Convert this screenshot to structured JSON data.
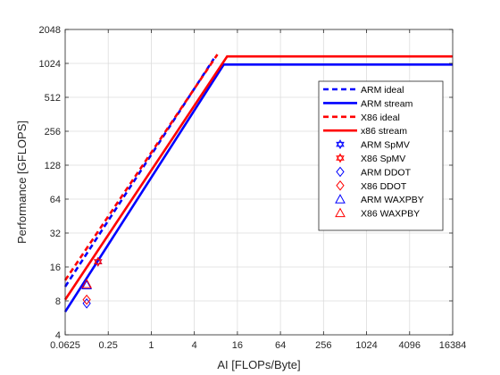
{
  "chart_data": {
    "type": "line",
    "xlabel": "AI [FLOPs/Byte]",
    "ylabel": "Performance [GFLOPS]",
    "x_scale": "log2",
    "y_scale": "log2",
    "xlim": [
      0.0625,
      16384
    ],
    "ylim": [
      4,
      2048
    ],
    "grid": true,
    "legend_position": "right",
    "x_ticks": [
      0.0625,
      0.25,
      1,
      4,
      16,
      64,
      256,
      1024,
      4096,
      16384
    ],
    "x_tick_labels": [
      "0.0625",
      "0.25",
      "1",
      "4",
      "16",
      "64",
      "256",
      "1024",
      "4096",
      "16384"
    ],
    "y_ticks": [
      4,
      8,
      16,
      32,
      64,
      128,
      256,
      512,
      1024,
      2048
    ],
    "y_tick_labels": [
      "4",
      "8",
      "16",
      "32",
      "64",
      "128",
      "256",
      "512",
      "1024",
      "2048"
    ],
    "lines": [
      {
        "name": "ARM ideal",
        "color": "#0000ff",
        "style": "dashed",
        "points": [
          [
            0.0625,
            10.7
          ],
          [
            7.5,
            1126
          ]
        ]
      },
      {
        "name": "ARM stream",
        "color": "#0000ff",
        "style": "solid",
        "points": [
          [
            0.0625,
            6.4
          ],
          [
            10.3,
            1000
          ],
          [
            16384,
            1000
          ]
        ]
      },
      {
        "name": "X86 ideal",
        "color": "#ff0000",
        "style": "dashed",
        "points": [
          [
            0.0625,
            12.2
          ],
          [
            8.4,
            1228
          ]
        ]
      },
      {
        "name": "x86 stream",
        "color": "#ff0000",
        "style": "solid",
        "points": [
          [
            0.0625,
            8.2
          ],
          [
            11.5,
            1180
          ],
          [
            16384,
            1180
          ]
        ]
      }
    ],
    "markers": [
      {
        "name": "ARM SpMV",
        "color": "#0000ff",
        "marker": "hexagram",
        "points": [
          [
            0.18,
            17.8
          ]
        ]
      },
      {
        "name": "X86 SpMV",
        "color": "#ff0000",
        "marker": "hexagram",
        "points": [
          [
            0.18,
            17.8
          ]
        ]
      },
      {
        "name": "ARM DDOT",
        "color": "#0000ff",
        "marker": "diamond",
        "points": [
          [
            0.125,
            7.6
          ]
        ]
      },
      {
        "name": "X86 DDOT",
        "color": "#ff0000",
        "marker": "diamond",
        "points": [
          [
            0.125,
            8.2
          ]
        ]
      },
      {
        "name": "ARM WAXPBY",
        "color": "#0000ff",
        "marker": "triangle",
        "points": [
          [
            0.125,
            11.0
          ]
        ]
      },
      {
        "name": "X86 WAXPBY",
        "color": "#ff0000",
        "marker": "triangle",
        "points": [
          [
            0.125,
            11.3
          ]
        ]
      }
    ]
  }
}
